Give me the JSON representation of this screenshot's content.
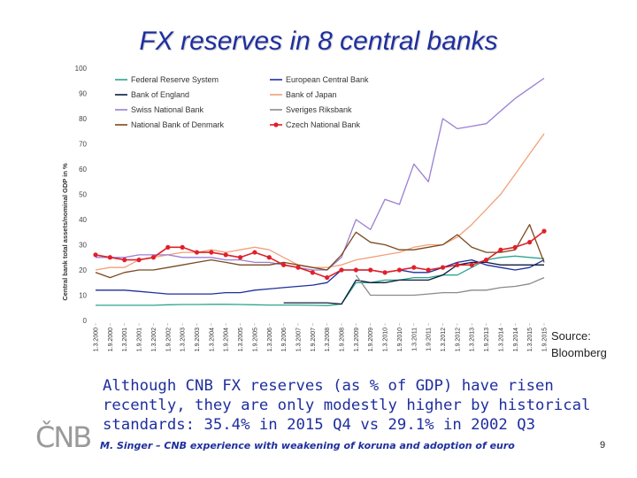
{
  "slide": {
    "title": "FX reserves in 8 central banks",
    "source_line1": "Source:",
    "source_line2": "Bloomberg",
    "note": "Although CNB FX reserves (as % of GDP) have risen recently, they are only modestly higher by historical standards: 35.4% in 2015 Q4 vs 29.1% in 2002 Q3",
    "footer": "M. Singer – CNB experience with weakening of koruna and adoption of euro",
    "page_number": "9",
    "logo_text": "ČNB"
  },
  "chart_data": {
    "type": "line",
    "ylabel": "Central bank total assets/nominal GDP in %",
    "ylim": [
      0,
      100
    ],
    "yticks": [
      0,
      10,
      20,
      30,
      40,
      50,
      60,
      70,
      80,
      90,
      100
    ],
    "categories": [
      "1.3.2000",
      "1.9.2000",
      "1.3.2001",
      "1.9.2001",
      "1.3.2002",
      "1.9.2002",
      "1.3.2003",
      "1.9.2003",
      "1.3.2004",
      "1.9.2004",
      "1.3.2005",
      "1.9.2005",
      "1.3.2006",
      "1.9.2006",
      "1.3.2007",
      "1.9.2007",
      "1.3.2008",
      "1.9.2008",
      "1.3.2009",
      "1.9.2009",
      "1.3.2010",
      "1.9.2010",
      "1.3.2011",
      "1.9.2011",
      "1.3.2012",
      "1.9.2012",
      "1.3.2013",
      "1.9.2013",
      "1.3.2014",
      "1.9.2014",
      "1.3.2015",
      "1.9.2015"
    ],
    "legend_position": "top-left",
    "series": [
      {
        "name": "Federal Reserve System",
        "color": "#2ca58d",
        "values": [
          6,
          6,
          6,
          6,
          6,
          6.2,
          6.3,
          6.3,
          6.4,
          6.4,
          6.3,
          6.2,
          6.1,
          6.1,
          6.1,
          6,
          5.9,
          6.5,
          15,
          15,
          16,
          16,
          17,
          17,
          18,
          18,
          21,
          24,
          25,
          25.5,
          25,
          24.5
        ]
      },
      {
        "name": "European Central Bank",
        "color": "#1f2f9e",
        "values": [
          12,
          12,
          12,
          11.5,
          11,
          10.5,
          10.5,
          10.5,
          10.5,
          11,
          11,
          12,
          12.5,
          13,
          13.5,
          14,
          15,
          20,
          20,
          20,
          19,
          20,
          19,
          19,
          21,
          23,
          24,
          22,
          21,
          20,
          21,
          24
        ]
      },
      {
        "name": "Bank of England",
        "color": "#0d1b3e",
        "values": [
          null,
          null,
          null,
          null,
          null,
          null,
          null,
          null,
          null,
          null,
          null,
          null,
          null,
          7,
          7,
          7,
          7,
          6.5,
          16,
          15,
          15,
          16,
          16,
          16,
          18,
          22,
          23,
          23,
          22,
          22,
          22,
          22
        ]
      },
      {
        "name": "Bank of Japan",
        "color": "#f2a07a",
        "values": [
          20,
          21,
          21,
          24,
          25,
          26,
          27,
          27,
          28,
          27,
          28,
          29,
          28,
          25,
          22,
          21,
          21,
          22,
          24,
          25,
          26,
          27,
          29,
          30,
          30,
          33,
          38,
          44,
          50,
          58,
          66,
          74
        ]
      },
      {
        "name": "Swiss National Bank",
        "color": "#9b7fd4",
        "values": [
          25,
          25,
          25,
          26,
          26,
          26,
          25,
          25,
          25,
          24,
          24,
          23,
          23,
          22,
          21,
          20,
          20,
          25,
          40,
          36,
          48,
          46,
          62,
          55,
          80,
          76,
          77,
          78,
          83,
          88,
          92,
          96
        ]
      },
      {
        "name": "Sveriges Riksbank",
        "color": "#8a8a8a",
        "values": [
          null,
          null,
          null,
          null,
          null,
          null,
          null,
          null,
          null,
          null,
          null,
          null,
          null,
          null,
          null,
          null,
          null,
          null,
          18,
          10,
          10,
          10,
          10,
          10.5,
          11,
          11,
          12,
          12,
          13,
          13.5,
          14.5,
          17
        ]
      },
      {
        "name": "National Bank of Denmark",
        "color": "#7a4a1e",
        "values": [
          19,
          17,
          19,
          20,
          20,
          21,
          22,
          23,
          24,
          23,
          22,
          22,
          22,
          23,
          22,
          21,
          20,
          26,
          35,
          31,
          30,
          28,
          28,
          29,
          30,
          34,
          29,
          27,
          27,
          28,
          38,
          23
        ]
      },
      {
        "name": "Czech National Bank",
        "color": "#e0202a",
        "values": [
          26,
          25,
          24,
          24,
          25,
          29,
          29,
          27,
          27,
          26,
          25,
          27,
          25,
          22,
          21,
          19,
          17,
          20,
          20,
          20,
          19,
          20,
          21,
          20,
          21,
          22,
          22,
          24,
          28,
          29,
          31,
          35.4
        ]
      }
    ]
  }
}
